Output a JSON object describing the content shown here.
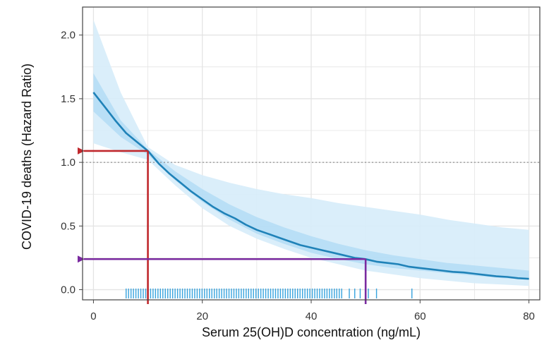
{
  "chart_data": {
    "type": "line",
    "title": "",
    "xlabel": "Serum 25(OH)D concentration (ng/mL)",
    "ylabel": "COVID-19 deaths (Hazard Ratio)",
    "xlim": [
      -2,
      82
    ],
    "ylim": [
      -0.08,
      2.22
    ],
    "x_ticks": [
      0,
      20,
      40,
      60,
      80
    ],
    "x_tick_labels": [
      "0",
      "20",
      "40",
      "60",
      "80"
    ],
    "y_ticks": [
      0,
      0.5,
      1,
      1.5,
      2
    ],
    "y_tick_labels": [
      "0.0",
      "0.5",
      "1.0",
      "1.5",
      "2.0"
    ],
    "grid": true,
    "reference_line": {
      "y": 1.0,
      "style": "dotted"
    },
    "series": [
      {
        "name": "Hazard ratio curve",
        "x": [
          0,
          2,
          4,
          6,
          8,
          10,
          12,
          14,
          16,
          18,
          20,
          22,
          24,
          26,
          28,
          30,
          32,
          34,
          36,
          38,
          40,
          42,
          44,
          46,
          48,
          50,
          52,
          54,
          56,
          58,
          60,
          62,
          64,
          66,
          68,
          70,
          72,
          74,
          76,
          78,
          80
        ],
        "y": [
          1.55,
          1.44,
          1.33,
          1.23,
          1.16,
          1.09,
          0.99,
          0.91,
          0.84,
          0.77,
          0.71,
          0.65,
          0.6,
          0.56,
          0.51,
          0.47,
          0.44,
          0.41,
          0.38,
          0.35,
          0.33,
          0.31,
          0.29,
          0.27,
          0.25,
          0.24,
          0.22,
          0.21,
          0.2,
          0.18,
          0.17,
          0.16,
          0.15,
          0.14,
          0.135,
          0.125,
          0.115,
          0.105,
          0.1,
          0.09,
          0.085
        ]
      }
    ],
    "confidence_bands": [
      {
        "name": "outer band",
        "x": [
          0,
          5,
          10,
          15,
          20,
          25,
          30,
          35,
          40,
          45,
          50,
          55,
          60,
          65,
          70,
          75,
          80
        ],
        "lower": [
          1.15,
          1.08,
          1.02,
          0.82,
          0.64,
          0.5,
          0.4,
          0.32,
          0.25,
          0.2,
          0.15,
          0.12,
          0.09,
          0.07,
          0.05,
          0.04,
          0.03
        ],
        "upper": [
          2.12,
          1.55,
          1.12,
          0.98,
          0.9,
          0.84,
          0.79,
          0.75,
          0.72,
          0.68,
          0.65,
          0.62,
          0.59,
          0.55,
          0.52,
          0.49,
          0.47
        ]
      },
      {
        "name": "inner band",
        "x": [
          0,
          5,
          10,
          15,
          20,
          25,
          30,
          35,
          40,
          45,
          50,
          55,
          60,
          65,
          70,
          75,
          80
        ],
        "lower": [
          1.4,
          1.2,
          1.06,
          0.86,
          0.69,
          0.55,
          0.44,
          0.36,
          0.29,
          0.24,
          0.2,
          0.17,
          0.15,
          0.13,
          0.11,
          0.09,
          0.08
        ],
        "upper": [
          1.7,
          1.33,
          1.1,
          0.93,
          0.79,
          0.67,
          0.57,
          0.49,
          0.42,
          0.36,
          0.31,
          0.27,
          0.24,
          0.21,
          0.19,
          0.17,
          0.15
        ]
      }
    ],
    "annotations": [
      {
        "name": "red guide",
        "color": "#c0282d",
        "x": 10,
        "y": 1.09
      },
      {
        "name": "purple guide",
        "color": "#7a2aa0",
        "x": 50,
        "y": 0.24
      }
    ],
    "rug": {
      "color": "#36a3de",
      "dense_range": [
        6,
        46
      ],
      "sparse_x": [
        47,
        48,
        49,
        50.5,
        52,
        58.5
      ]
    },
    "colors": {
      "curve": "#1f82b8",
      "band_outer": "#d6ecfa",
      "band_inner": "#b3dcf5",
      "grid": "#e4e4e4",
      "reference": "#7a7a7a"
    }
  }
}
